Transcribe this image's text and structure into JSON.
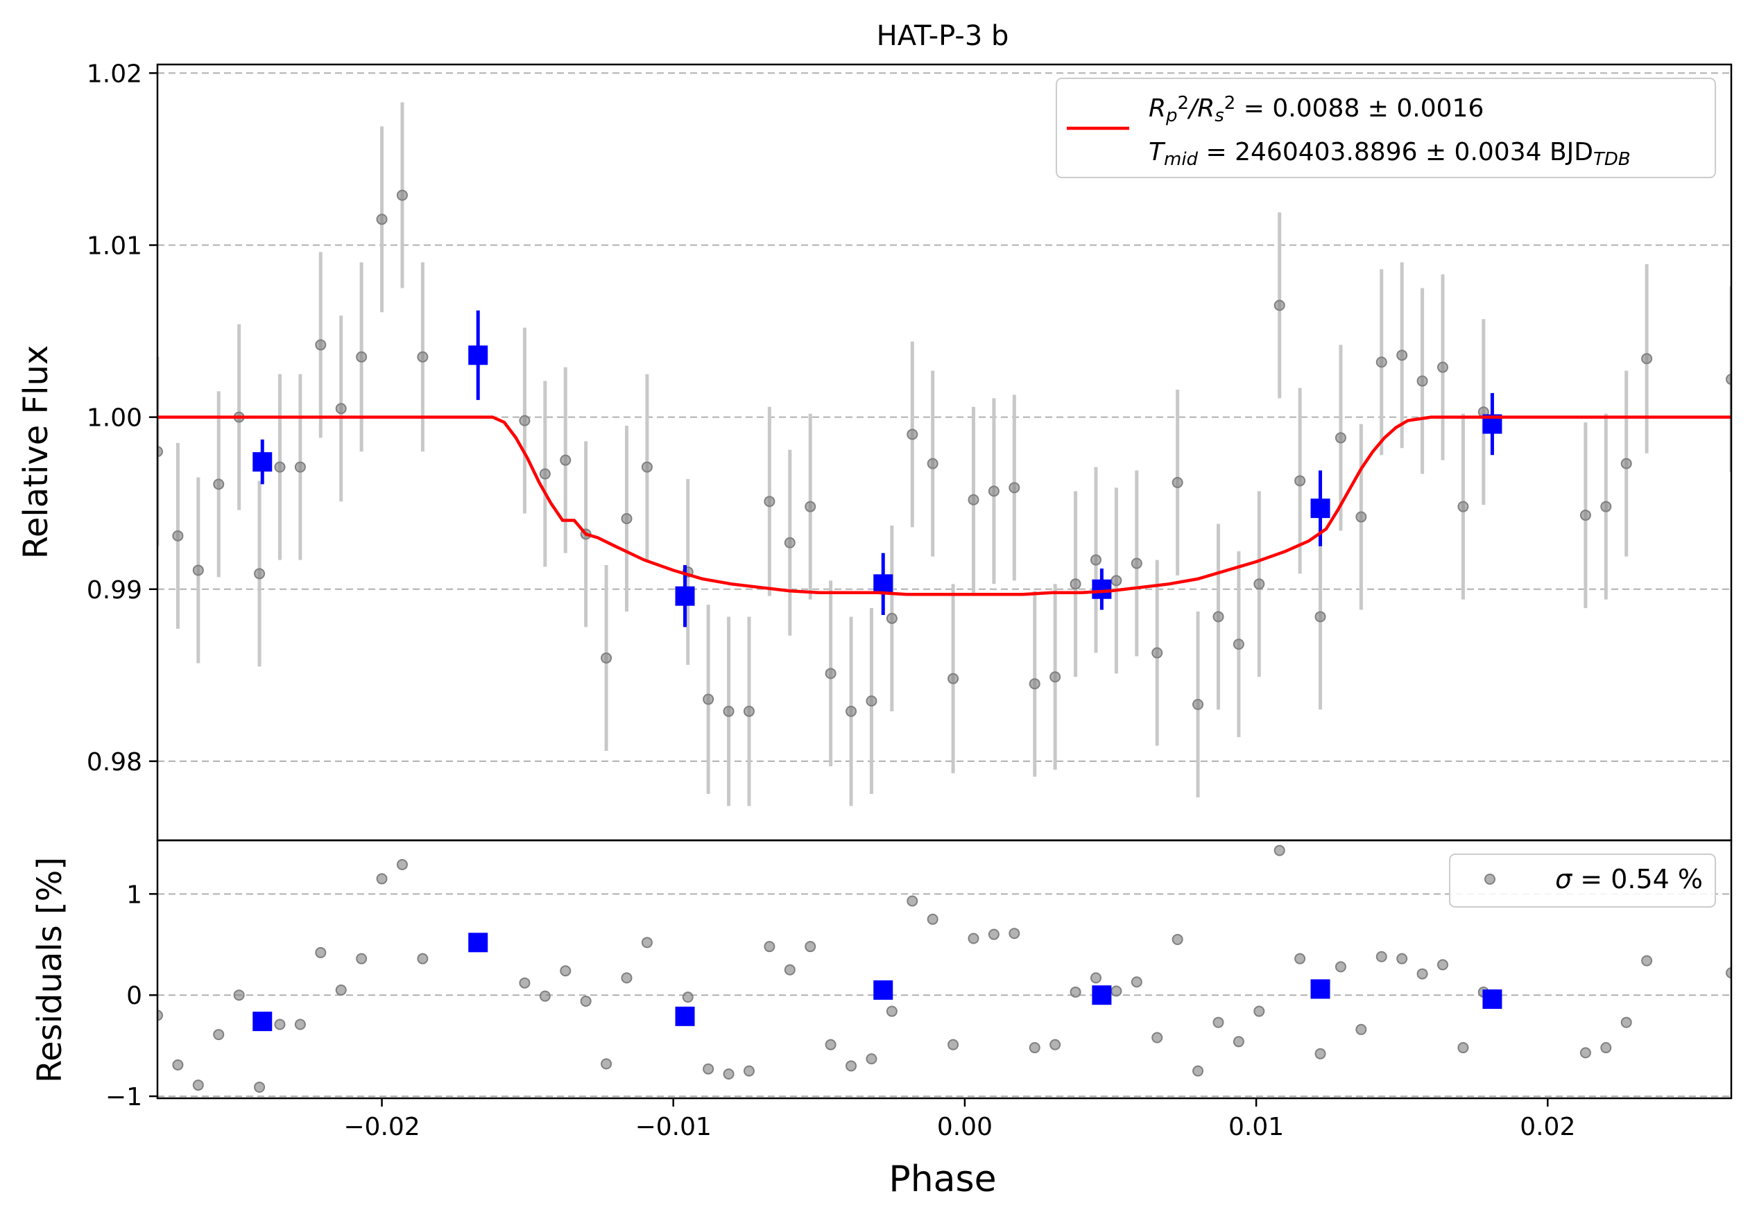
{
  "chart_data": {
    "title": "HAT-P-3 b",
    "xlabel": "Phase",
    "xlim": [
      -0.0277,
      0.0263
    ],
    "xticks": [
      -0.02,
      -0.01,
      0.0,
      0.01,
      0.02
    ],
    "xtick_labels": [
      "−0.02",
      "−0.01",
      "0.00",
      "0.01",
      "0.02"
    ],
    "colors": {
      "raw": "#808080",
      "errorbar": "#c8c8c8",
      "binned": "#0000ff",
      "model": "#ff0000",
      "grid": "#b0b0b0"
    },
    "panels": [
      {
        "type": "scatter",
        "role": "light-curve",
        "ylabel": "Relative Flux",
        "ylim": [
          0.9754,
          1.0205
        ],
        "yticks": [
          0.98,
          0.99,
          1.0,
          1.01,
          1.02
        ],
        "ytick_labels": [
          "0.98",
          "0.99",
          "1.00",
          "1.01",
          "1.02"
        ],
        "grid": "horizontal-dashed",
        "legend": {
          "placement": "top-right",
          "line1_parts": [
            {
              "t": "R",
              "s": "i"
            },
            {
              "t": "p",
              "s": "sub"
            },
            {
              "t": "2",
              "s": "sup"
            },
            {
              "t": "/",
              "s": "i"
            },
            {
              "t": "R",
              "s": "i"
            },
            {
              "t": "s",
              "s": "sub"
            },
            {
              "t": "2",
              "s": "sup"
            },
            {
              "t": " = 0.0088 ± 0.0016",
              "s": "n"
            }
          ],
          "line2_parts": [
            {
              "t": "T",
              "s": "i"
            },
            {
              "t": "mid",
              "s": "sub"
            },
            {
              "t": " = 2460403.8896 ± 0.0034 BJD",
              "s": "n"
            },
            {
              "t": "TDB",
              "s": "sub"
            }
          ]
        },
        "raw_points": {
          "x": [
            -0.0277,
            -0.027,
            -0.0263,
            -0.0256,
            -0.0249,
            -0.0242,
            -0.0235,
            -0.0228,
            -0.0221,
            -0.0214,
            -0.0207,
            -0.02,
            -0.0193,
            -0.0186,
            -0.0151,
            -0.0144,
            -0.0137,
            -0.013,
            -0.0123,
            -0.0116,
            -0.0109,
            -0.0095,
            -0.0088,
            -0.0081,
            -0.0074,
            -0.0067,
            -0.006,
            -0.0053,
            -0.0046,
            -0.0039,
            -0.0032,
            -0.0025,
            -0.0018,
            -0.0011,
            -0.0004,
            0.0003,
            0.001,
            0.0017,
            0.0024,
            0.0031,
            0.0038,
            0.0045,
            0.0052,
            0.0059,
            0.0066,
            0.0073,
            0.008,
            0.0087,
            0.0094,
            0.0101,
            0.0108,
            0.0115,
            0.0122,
            0.0129,
            0.0136,
            0.0143,
            0.015,
            0.0157,
            0.0164,
            0.0171,
            0.0178,
            0.0213,
            0.022,
            0.0227,
            0.0234,
            0.0263
          ],
          "y": [
            0.998,
            0.9931,
            0.9911,
            0.9961,
            1.0,
            0.9909,
            0.9971,
            0.9971,
            1.0042,
            1.0005,
            1.0035,
            1.0115,
            1.0129,
            1.0035,
            0.9998,
            0.9967,
            0.9975,
            0.9932,
            0.986,
            0.9941,
            0.9971,
            0.991,
            0.9836,
            0.9829,
            0.9829,
            0.9951,
            0.9927,
            0.9948,
            0.9851,
            0.9829,
            0.9835,
            0.9883,
            0.999,
            0.9973,
            0.9848,
            0.9952,
            0.9957,
            0.9959,
            0.9845,
            0.9849,
            0.9903,
            0.9917,
            0.9905,
            0.9915,
            0.9863,
            0.9962,
            0.9833,
            0.9884,
            0.9868,
            0.9903,
            1.0065,
            0.9963,
            0.9884,
            0.9988,
            0.9942,
            1.0032,
            1.0036,
            1.0021,
            1.0029,
            0.9948,
            1.0003,
            0.9943,
            0.9948,
            0.9973,
            1.0034,
            1.0022
          ],
          "err": [
            0.0055,
            0.0054,
            0.0054,
            0.0054,
            0.0054,
            0.0054,
            0.0054,
            0.0054,
            0.0054,
            0.0054,
            0.0055,
            0.0054,
            0.0054,
            0.0055,
            0.0054,
            0.0054,
            0.0054,
            0.0054,
            0.0054,
            0.0054,
            0.0054,
            0.0054,
            0.0055,
            0.0055,
            0.0055,
            0.0055,
            0.0054,
            0.0054,
            0.0054,
            0.0055,
            0.0054,
            0.0054,
            0.0054,
            0.0054,
            0.0055,
            0.0054,
            0.0054,
            0.0054,
            0.0054,
            0.0054,
            0.0054,
            0.0054,
            0.0054,
            0.0054,
            0.0054,
            0.0054,
            0.0054,
            0.0054,
            0.0054,
            0.0054,
            0.0054,
            0.0054,
            0.0054,
            0.0054,
            0.0054,
            0.0054,
            0.0054,
            0.0054,
            0.0054,
            0.0054,
            0.0054,
            0.0054,
            0.0054,
            0.0054,
            0.0055,
            0.0054
          ]
        },
        "binned_points": {
          "x": [
            -0.0241,
            -0.0167,
            -0.0096,
            -0.0028,
            0.0047,
            0.0122,
            0.0181
          ],
          "y": [
            0.9974,
            1.0036,
            0.9896,
            0.9903,
            0.99,
            0.9947,
            0.9996
          ],
          "err": [
            0.0013,
            0.0026,
            0.0018,
            0.0018,
            0.0012,
            0.0022,
            0.0018
          ]
        },
        "model": {
          "name": "transit model",
          "x": [
            -0.0277,
            -0.0162,
            -0.0158,
            -0.0154,
            -0.015,
            -0.0146,
            -0.0142,
            -0.0138,
            -0.0134,
            -0.013,
            -0.0126,
            -0.012,
            -0.011,
            -0.01,
            -0.009,
            -0.008,
            -0.007,
            -0.006,
            -0.005,
            -0.004,
            -0.003,
            -0.002,
            -0.001,
            0.0,
            0.001,
            0.002,
            0.003,
            0.004,
            0.005,
            0.006,
            0.007,
            0.008,
            0.009,
            0.01,
            0.011,
            0.0118,
            0.0124,
            0.0128,
            0.0132,
            0.0136,
            0.014,
            0.0144,
            0.0148,
            0.0152,
            0.0156,
            0.016,
            0.0263
          ],
          "y": [
            1.0,
            1.0,
            0.9997,
            0.9988,
            0.9976,
            0.9962,
            0.995,
            0.994,
            0.994,
            0.9932,
            0.993,
            0.9925,
            0.9917,
            0.9911,
            0.9906,
            0.9903,
            0.9901,
            0.9899,
            0.9898,
            0.9898,
            0.9898,
            0.9897,
            0.9897,
            0.9897,
            0.9897,
            0.9897,
            0.9898,
            0.9898,
            0.9899,
            0.9901,
            0.9903,
            0.9906,
            0.9911,
            0.9916,
            0.9922,
            0.9928,
            0.9935,
            0.9946,
            0.9958,
            0.997,
            0.998,
            0.9988,
            0.9994,
            0.9998,
            0.9999,
            1.0,
            1.0
          ]
        }
      },
      {
        "type": "scatter",
        "role": "residuals",
        "ylabel": "Residuals [%]",
        "ylim": [
          -1.02,
          1.53
        ],
        "yticks": [
          -1,
          0,
          1
        ],
        "ytick_labels": [
          "−1",
          "0",
          "1"
        ],
        "grid": "horizontal-dashed",
        "legend": {
          "placement": "top-right",
          "parts": [
            {
              "t": "σ",
              "s": "i"
            },
            {
              "t": " = 0.54 %",
              "s": "n"
            }
          ]
        },
        "raw_points": {
          "x": [
            -0.0277,
            -0.027,
            -0.0263,
            -0.0256,
            -0.0249,
            -0.0242,
            -0.0235,
            -0.0228,
            -0.0221,
            -0.0214,
            -0.0207,
            -0.02,
            -0.0193,
            -0.0186,
            -0.0151,
            -0.0144,
            -0.0137,
            -0.013,
            -0.0123,
            -0.0116,
            -0.0109,
            -0.0095,
            -0.0088,
            -0.0081,
            -0.0074,
            -0.0067,
            -0.006,
            -0.0053,
            -0.0046,
            -0.0039,
            -0.0032,
            -0.0025,
            -0.0018,
            -0.0011,
            -0.0004,
            0.0003,
            0.001,
            0.0017,
            0.0024,
            0.0031,
            0.0038,
            0.0045,
            0.0052,
            0.0059,
            0.0066,
            0.0073,
            0.008,
            0.0087,
            0.0094,
            0.0101,
            0.0108,
            0.0115,
            0.0122,
            0.0129,
            0.0136,
            0.0143,
            0.015,
            0.0157,
            0.0164,
            0.0171,
            0.0178,
            0.0213,
            0.022,
            0.0227,
            0.0234,
            0.0263
          ],
          "y": [
            -0.2,
            -0.69,
            -0.89,
            -0.39,
            0.0,
            -0.91,
            -0.29,
            -0.29,
            0.42,
            0.05,
            0.36,
            1.15,
            1.29,
            0.36,
            0.12,
            -0.01,
            0.24,
            -0.06,
            -0.68,
            0.17,
            0.52,
            -0.02,
            -0.73,
            -0.78,
            -0.75,
            0.48,
            0.25,
            0.48,
            -0.49,
            -0.7,
            -0.63,
            -0.16,
            0.93,
            0.75,
            -0.49,
            0.56,
            0.6,
            0.61,
            -0.52,
            -0.49,
            0.03,
            0.17,
            0.04,
            0.13,
            -0.42,
            0.55,
            -0.75,
            -0.27,
            -0.46,
            -0.16,
            1.43,
            0.36,
            -0.58,
            0.28,
            -0.34,
            0.38,
            0.36,
            0.21,
            0.3,
            -0.52,
            0.03,
            -0.57,
            -0.52,
            -0.27,
            0.34,
            0.22
          ]
        },
        "binned_points": {
          "x": [
            -0.0241,
            -0.0167,
            -0.0096,
            -0.0028,
            0.0047,
            0.0122,
            0.0181
          ],
          "y": [
            -0.26,
            0.52,
            -0.21,
            0.05,
            0.0,
            0.06,
            -0.04
          ]
        }
      }
    ]
  }
}
